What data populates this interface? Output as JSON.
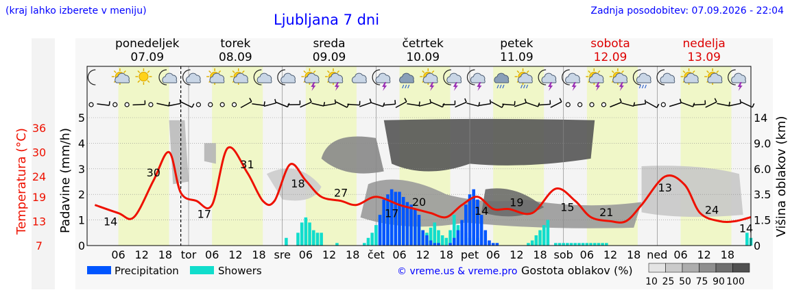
{
  "header": {
    "menu_hint": "(kraj lahko izberete v meniju)",
    "title": "Ljubljana 7 dni",
    "last_update": "Zadnja posodobitev: 07.09.2026 - 22:04"
  },
  "colors": {
    "weekday_header": "#000000",
    "weekend_header": "#dd0000",
    "temperature_line": "#ee1100",
    "precipitation": "#0055ff",
    "showers": "#11ddcc",
    "daytime_band": "#f0f7c8",
    "night_band": "#f4f4f4"
  },
  "days": [
    {
      "name": "ponedeljek",
      "date": "07.09",
      "weekend": false
    },
    {
      "name": "torek",
      "date": "08.09",
      "weekend": false
    },
    {
      "name": "sreda",
      "date": "09.09",
      "weekend": false
    },
    {
      "name": "četrtek",
      "date": "10.09",
      "weekend": false
    },
    {
      "name": "petek",
      "date": "11.09",
      "weekend": false
    },
    {
      "name": "sobota",
      "date": "12.09",
      "weekend": true
    },
    {
      "name": "nedelja",
      "date": "13.09",
      "weekend": true
    }
  ],
  "weather_icons": [
    "moon-icon",
    "sun-cloud-icon",
    "sun-icon",
    "moon-cloud-icon",
    "moon-cloud-icon",
    "sun-cloud-icon",
    "sun-cloud-icon",
    "moon-cloud-icon",
    "moon-cloud-icon",
    "sun-thunder-icon",
    "sun-thunder-icon",
    "cloud-sun-icon",
    "moon-thunder-icon",
    "rain-cloud-icon",
    "sun-thunder-icon",
    "moon-thunder-icon",
    "moon-thunder-icon",
    "rain-cloud-icon",
    "sun-rain-icon",
    "moon-thunder-icon",
    "moon-thunder-icon",
    "sun-thunder-icon",
    "sun-thunder-icon",
    "moon-rain-icon",
    "moon-cloud-icon",
    "sun-cloud-icon",
    "sun-cloud-icon",
    "moon-thunder-icon"
  ],
  "chart_data": {
    "type": "line",
    "title": "Ljubljana 7 dni",
    "ylabel_left_temperature": "Temperatura (°C)",
    "ylabel_left_precip": "Padavine (mm/h)",
    "ylabel_right": "Višina oblakov (km)",
    "ylim_precip": [
      0,
      5
    ],
    "temperature_ticks": [
      "36",
      "30",
      "24",
      "19",
      "13",
      "7"
    ],
    "precip_ticks": [
      "5",
      "4",
      "3",
      "2",
      "1",
      "0"
    ],
    "cloud_height_ticks": [
      "14",
      "9.0",
      "6.0",
      "3.5",
      "1.5",
      "0"
    ],
    "x_tick_labels": [
      "06",
      "12",
      "18",
      "tor",
      "06",
      "12",
      "18",
      "sre",
      "06",
      "12",
      "18",
      "čet",
      "06",
      "12",
      "18",
      "pet",
      "06",
      "12",
      "18",
      "sob",
      "06",
      "12",
      "18",
      "ned",
      "06",
      "12",
      "18"
    ],
    "temperature_series": {
      "name": "Temperatura",
      "hours": [
        0,
        6,
        10,
        15,
        19,
        22,
        26,
        30,
        34,
        39,
        43,
        46,
        50,
        54,
        58,
        63,
        67,
        72,
        78,
        82,
        86,
        90,
        94,
        98,
        102,
        106,
        112,
        118,
        123,
        127,
        132,
        136,
        140,
        146,
        151,
        155,
        160,
        164,
        168
      ],
      "values": [
        17,
        15,
        14,
        23,
        30,
        20,
        18,
        17,
        31,
        25,
        18,
        18,
        27,
        23,
        19,
        18,
        17,
        19,
        17,
        16,
        15,
        14,
        17,
        19,
        16,
        16,
        15,
        21,
        18,
        14,
        13,
        13,
        17,
        24,
        22,
        15,
        13,
        13,
        14
      ]
    },
    "temperature_labels": [
      {
        "hour": 4,
        "text": "14"
      },
      {
        "hour": 15,
        "text": "30"
      },
      {
        "hour": 28,
        "text": "17"
      },
      {
        "hour": 39,
        "text": "31"
      },
      {
        "hour": 52,
        "text": "18"
      },
      {
        "hour": 63,
        "text": "27"
      },
      {
        "hour": 76,
        "text": "17"
      },
      {
        "hour": 83,
        "text": "20"
      },
      {
        "hour": 99,
        "text": "14"
      },
      {
        "hour": 108,
        "text": "19"
      },
      {
        "hour": 121,
        "text": "15"
      },
      {
        "hour": 131,
        "text": "21"
      },
      {
        "hour": 146,
        "text": "13"
      },
      {
        "hour": 158,
        "text": "24"
      },
      {
        "hour": 168,
        "text": "14"
      }
    ],
    "precipitation_series": {
      "name": "Precipitation",
      "start_hour": 73,
      "values": [
        1.2,
        1.8,
        2.0,
        2.2,
        2.1,
        2.1,
        1.9,
        1.7,
        1.6,
        1.4,
        1.2,
        0.6,
        0.4,
        0.2,
        0.1,
        0.1,
        0.0,
        0.0,
        0.1,
        0.3,
        0.6,
        1.0,
        1.6,
        2.0,
        2.2,
        1.8,
        1.2,
        0.6,
        0.2,
        0.1,
        0.1
      ]
    },
    "showers_series": {
      "name": "Showers",
      "bars": [
        {
          "hour": 49,
          "value": 0.3
        },
        {
          "hour": 52,
          "value": 0.5
        },
        {
          "hour": 53,
          "value": 0.9
        },
        {
          "hour": 54,
          "value": 1.1
        },
        {
          "hour": 55,
          "value": 0.9
        },
        {
          "hour": 56,
          "value": 0.6
        },
        {
          "hour": 57,
          "value": 0.5
        },
        {
          "hour": 58,
          "value": 0.5
        },
        {
          "hour": 62,
          "value": 0.1
        },
        {
          "hour": 69,
          "value": 0.1
        },
        {
          "hour": 70,
          "value": 0.3
        },
        {
          "hour": 71,
          "value": 0.5
        },
        {
          "hour": 72,
          "value": 0.8
        },
        {
          "hour": 73,
          "value": 1.2
        },
        {
          "hour": 74,
          "value": 1.6
        },
        {
          "hour": 75,
          "value": 1.8
        },
        {
          "hour": 76,
          "value": 1.5
        },
        {
          "hour": 77,
          "value": 1.3
        },
        {
          "hour": 82,
          "value": 1.0
        },
        {
          "hour": 83,
          "value": 0.9
        },
        {
          "hour": 84,
          "value": 0.6
        },
        {
          "hour": 85,
          "value": 0.5
        },
        {
          "hour": 86,
          "value": 0.7
        },
        {
          "hour": 87,
          "value": 0.9
        },
        {
          "hour": 88,
          "value": 0.6
        },
        {
          "hour": 89,
          "value": 0.4
        },
        {
          "hour": 90,
          "value": 0.3
        },
        {
          "hour": 91,
          "value": 0.6
        },
        {
          "hour": 92,
          "value": 1.2
        },
        {
          "hour": 93,
          "value": 0.8
        },
        {
          "hour": 94,
          "value": 0.6
        },
        {
          "hour": 95,
          "value": 0.5
        },
        {
          "hour": 96,
          "value": 0.3
        },
        {
          "hour": 97,
          "value": 0.4
        },
        {
          "hour": 98,
          "value": 0.3
        },
        {
          "hour": 111,
          "value": 0.1
        },
        {
          "hour": 112,
          "value": 0.2
        },
        {
          "hour": 113,
          "value": 0.4
        },
        {
          "hour": 114,
          "value": 0.6
        },
        {
          "hour": 115,
          "value": 0.8
        },
        {
          "hour": 116,
          "value": 1.0
        },
        {
          "hour": 118,
          "value": 0.1
        },
        {
          "hour": 119,
          "value": 0.1
        },
        {
          "hour": 120,
          "value": 0.1
        },
        {
          "hour": 121,
          "value": 0.1
        },
        {
          "hour": 122,
          "value": 0.1
        },
        {
          "hour": 123,
          "value": 0.1
        },
        {
          "hour": 124,
          "value": 0.1
        },
        {
          "hour": 125,
          "value": 0.1
        },
        {
          "hour": 126,
          "value": 0.1
        },
        {
          "hour": 127,
          "value": 0.1
        },
        {
          "hour": 128,
          "value": 0.1
        },
        {
          "hour": 129,
          "value": 0.1
        },
        {
          "hour": 130,
          "value": 0.1
        },
        {
          "hour": 131,
          "value": 0.1
        },
        {
          "hour": 167,
          "value": 0.5
        },
        {
          "hour": 168,
          "value": 0.3
        }
      ]
    },
    "legend": [
      "Precipitation",
      "Showers"
    ],
    "legend_position": "bottom-left",
    "cloud_density_scale_label": "Gostota oblakov (%)",
    "cloud_density_scale": [
      "10",
      "25",
      "50",
      "75",
      "90",
      "100"
    ],
    "credit": "© vreme.us & vreme.pro",
    "grid": true
  }
}
